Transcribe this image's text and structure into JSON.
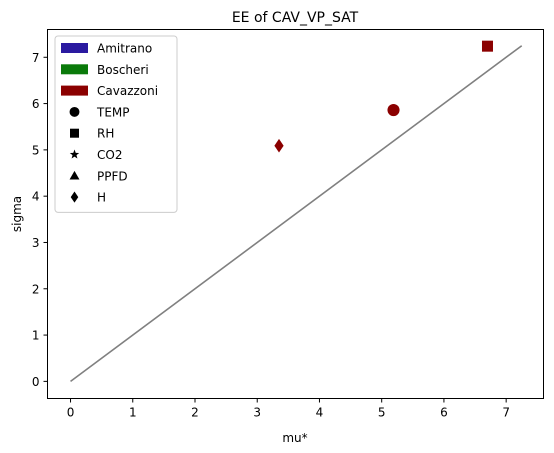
{
  "chart_data": {
    "type": "scatter",
    "title": "EE of CAV_VP_SAT",
    "xlabel": "mu*",
    "ylabel": "sigma",
    "xlim": [
      -0.37,
      7.6
    ],
    "ylim": [
      -0.37,
      7.6
    ],
    "x_ticks": [
      0,
      1,
      2,
      3,
      4,
      5,
      6,
      7
    ],
    "y_ticks": [
      0,
      1,
      2,
      3,
      4,
      5,
      6,
      7
    ],
    "grid": false,
    "legend_position": "top-left",
    "reference_line": {
      "from": [
        0,
        0
      ],
      "to": [
        7.25,
        7.25
      ],
      "color": "#808080"
    },
    "legend": {
      "groups": [
        {
          "label": "Amitrano",
          "color": "#2a1aa0"
        },
        {
          "label": "Boscheri",
          "color": "#0a7a0a"
        },
        {
          "label": "Cavazzoni",
          "color": "#8b0000"
        }
      ],
      "markers": [
        {
          "label": "TEMP",
          "marker": "circle"
        },
        {
          "label": "RH",
          "marker": "square"
        },
        {
          "label": "CO2",
          "marker": "star"
        },
        {
          "label": "PPFD",
          "marker": "triangle"
        },
        {
          "label": "H",
          "marker": "diamond"
        }
      ]
    },
    "series": [
      {
        "name": "Cavazzoni",
        "color": "#8b0000",
        "points": [
          {
            "variable": "TEMP",
            "marker": "circle",
            "x": 5.19,
            "y": 5.86
          },
          {
            "variable": "RH",
            "marker": "square",
            "x": 6.7,
            "y": 7.24
          },
          {
            "variable": "H",
            "marker": "diamond",
            "x": 3.35,
            "y": 5.09
          }
        ]
      }
    ]
  }
}
